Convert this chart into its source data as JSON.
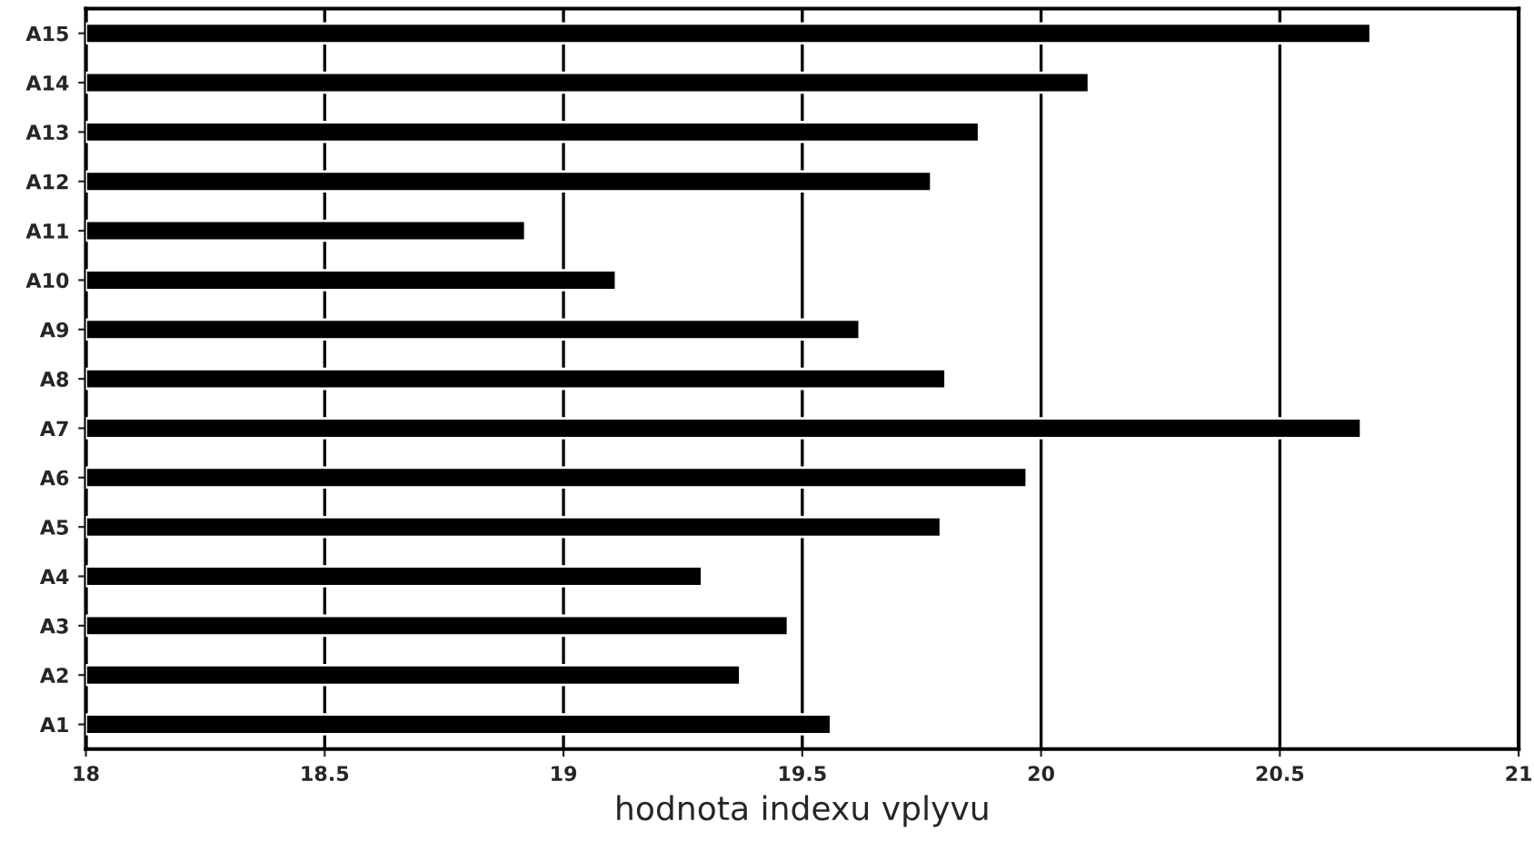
{
  "chart_data": {
    "type": "bar",
    "orientation": "horizontal",
    "xlabel": "hodnota indexu vplyvu",
    "categories": [
      "A15",
      "A14",
      "A13",
      "A12",
      "A11",
      "A10",
      "A9",
      "A8",
      "A7",
      "A6",
      "A5",
      "A4",
      "A3",
      "A2",
      "A1"
    ],
    "values": [
      20.69,
      20.1,
      19.87,
      19.77,
      18.92,
      19.11,
      19.62,
      19.8,
      20.67,
      19.97,
      19.79,
      19.29,
      19.47,
      19.37,
      19.56
    ],
    "color": "#000000",
    "xlim": [
      18,
      21
    ],
    "xticks": [
      18,
      18.5,
      19,
      19.5,
      20,
      20.5,
      21
    ],
    "grid": "x"
  }
}
